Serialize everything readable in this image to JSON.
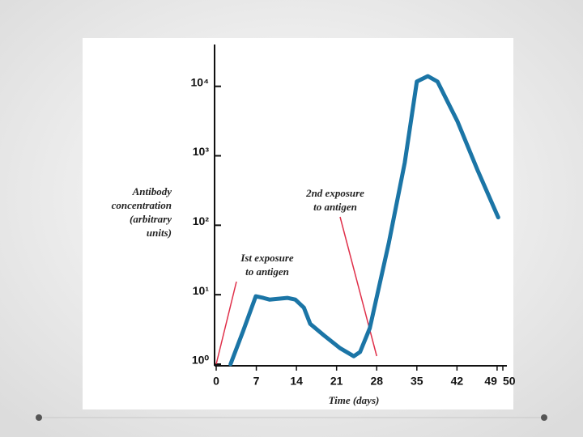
{
  "chart_data": {
    "type": "line",
    "y_label": [
      "Antibody",
      "concentration",
      "(arbitrary",
      "units)"
    ],
    "x_label": "Time (days)",
    "annotations": [
      {
        "text": [
          "Ist exposure",
          "to antigen"
        ],
        "x": 0
      },
      {
        "text": [
          "2nd exposure",
          "to antigen"
        ],
        "x": 28
      }
    ],
    "series": [
      {
        "name": "Antibody",
        "color": "#1b75a6",
        "x": [
          2.5,
          4.7,
          6.9,
          8.2,
          9.3,
          12.4,
          13.8,
          15.3,
          16.4,
          18.8,
          21.6,
          24,
          25.1,
          26.8,
          30.1,
          32.9,
          35,
          36.9,
          38.6,
          42.1,
          45.6,
          49.2
        ],
        "values": [
          1,
          3,
          9.5,
          9,
          8.5,
          9,
          8.5,
          6.5,
          3.8,
          2.6,
          1.7,
          1.3,
          1.5,
          3.3,
          55,
          800,
          11700,
          14000,
          11700,
          3100,
          620,
          130
        ]
      }
    ],
    "xlim": [
      0,
      50
    ],
    "xticks": [
      0,
      7,
      14,
      21,
      28,
      35,
      42,
      49,
      50
    ],
    "ylim": [
      1,
      40000
    ],
    "log_y": true,
    "yticks": [
      {
        "value": 1,
        "label": "10⁰"
      },
      {
        "value": 10,
        "label": "10¹"
      },
      {
        "value": 100,
        "label": "10²"
      },
      {
        "value": 1000,
        "label": "10³"
      },
      {
        "value": 10000,
        "label": "10⁴"
      }
    ],
    "pointer_color": "#e0304a"
  }
}
